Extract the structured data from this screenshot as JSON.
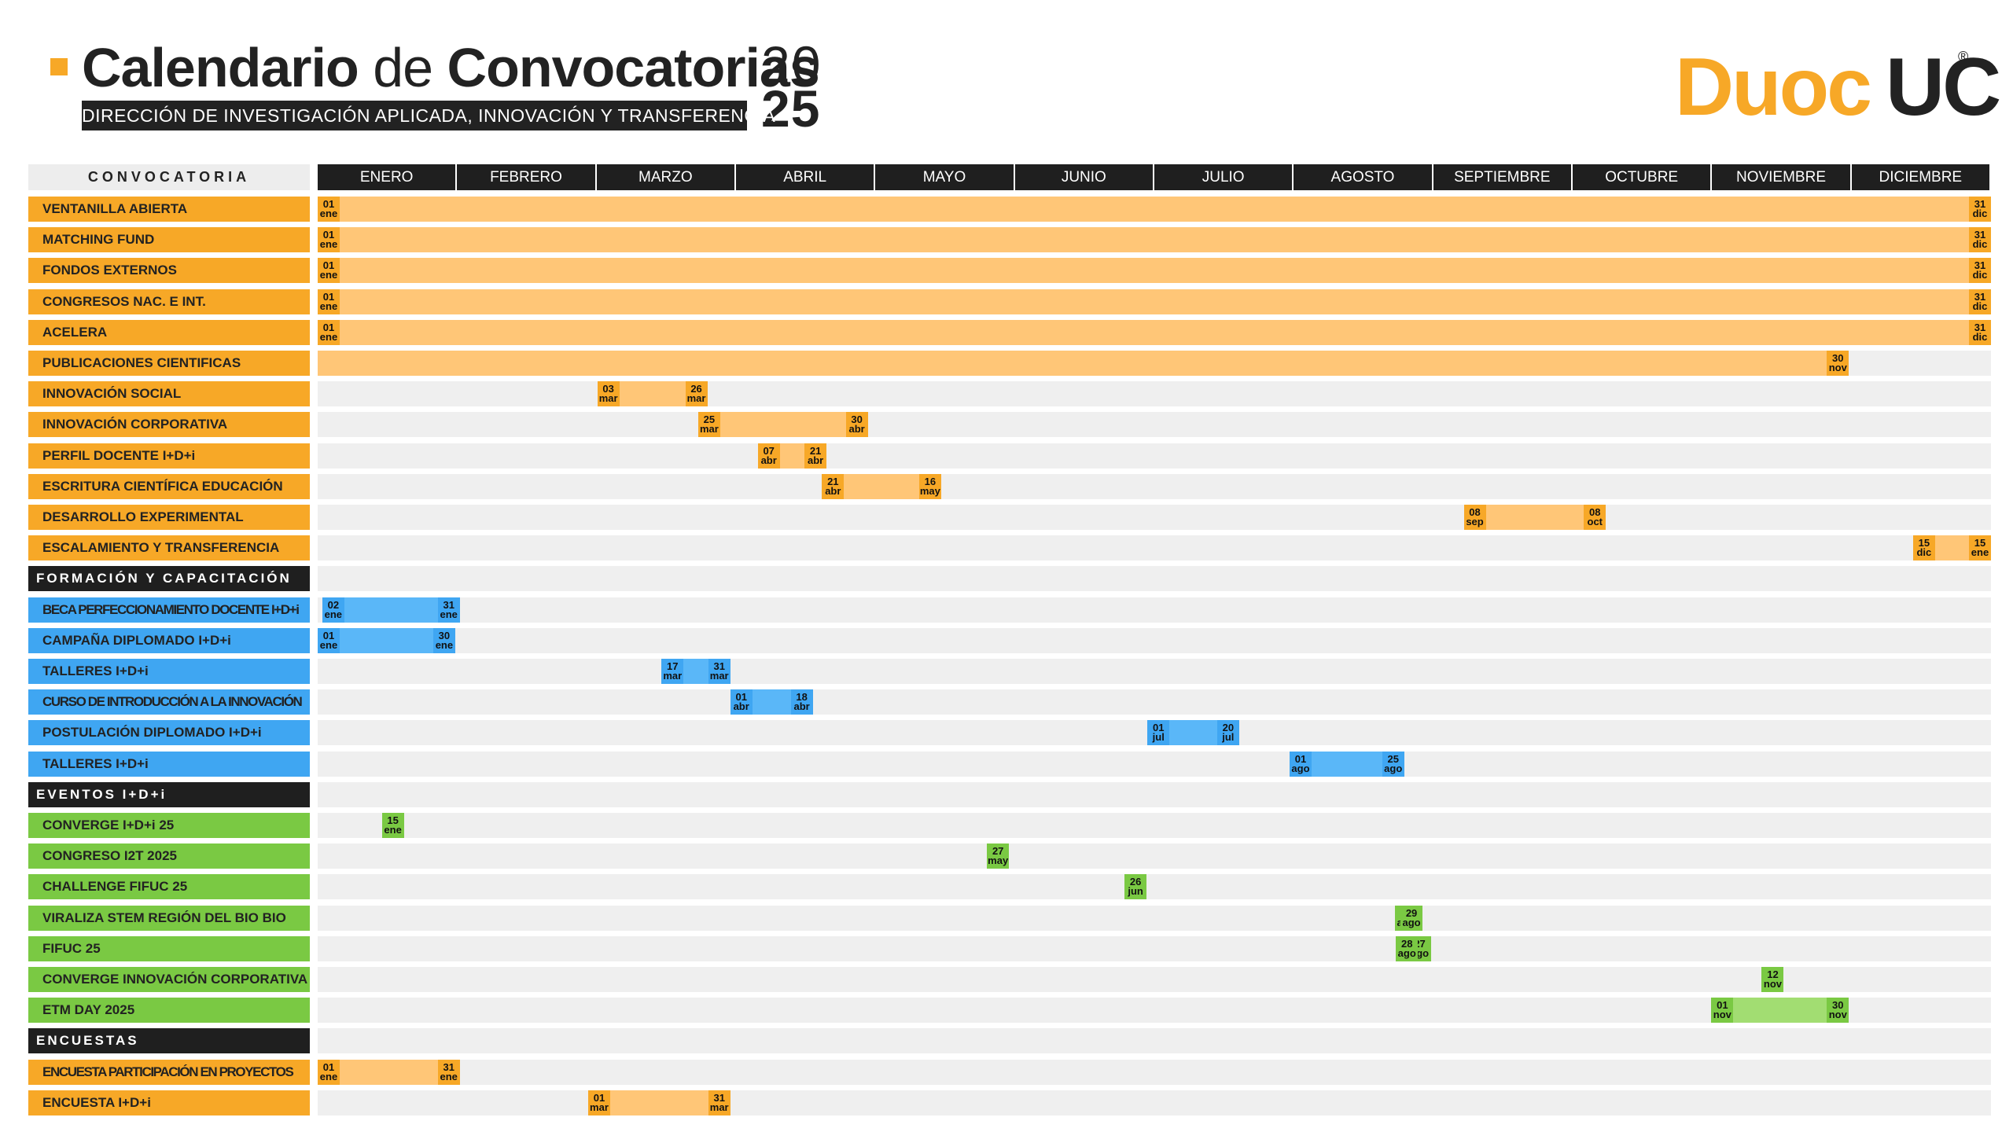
{
  "header": {
    "title_bold_1": "Calendario",
    "title_light": "de",
    "title_bold_2": "Convocatorias",
    "year_top": "20",
    "year_bottom": "25",
    "subtitle": "DIRECCIÓN DE INVESTIGACIÓN APLICADA, INNOVACIÓN Y TRANSFERENCIA",
    "logo_part1": "Duoc",
    "logo_part2": "UC",
    "logo_registered": "®"
  },
  "colors": {
    "orange": "#f7a827",
    "orange_light": "#ffc677",
    "blue": "#3fa6f2",
    "blue_light": "#5ab7f8",
    "green": "#7ac943",
    "green_light": "#a2dd72",
    "dark": "#1f1f1f",
    "track": "#efefef"
  },
  "table": {
    "first_column_header": "CONVOCATORIA",
    "months": [
      "ENERO",
      "FEBRERO",
      "MARZO",
      "ABRIL",
      "MAYO",
      "JUNIO",
      "JULIO",
      "AGOSTO",
      "SEPTIEMBRE",
      "OCTUBRE",
      "NOVIEMBRE",
      "DICIEMBRE"
    ]
  },
  "rows": [
    {
      "label": "VENTANILLA ABIERTA",
      "color": "orange",
      "start": "2025-01-01",
      "end": "2025-12-31",
      "marks": [
        {
          "day": "01",
          "mon": "ene",
          "date": "2025-01-01",
          "side": "start"
        },
        {
          "day": "31",
          "mon": "dic",
          "date": "2025-12-31",
          "side": "end"
        }
      ]
    },
    {
      "label": "MATCHING FUND",
      "color": "orange",
      "start": "2025-01-01",
      "end": "2025-12-31",
      "marks": [
        {
          "day": "01",
          "mon": "ene",
          "date": "2025-01-01",
          "side": "start"
        },
        {
          "day": "31",
          "mon": "dic",
          "date": "2025-12-31",
          "side": "end"
        }
      ]
    },
    {
      "label": "FONDOS EXTERNOS",
      "color": "orange",
      "start": "2025-01-01",
      "end": "2025-12-31",
      "marks": [
        {
          "day": "01",
          "mon": "ene",
          "date": "2025-01-01",
          "side": "start"
        },
        {
          "day": "31",
          "mon": "dic",
          "date": "2025-12-31",
          "side": "end"
        }
      ]
    },
    {
      "label": "CONGRESOS NAC. E INT.",
      "color": "orange",
      "start": "2025-01-01",
      "end": "2025-12-31",
      "marks": [
        {
          "day": "01",
          "mon": "ene",
          "date": "2025-01-01",
          "side": "start"
        },
        {
          "day": "31",
          "mon": "dic",
          "date": "2025-12-31",
          "side": "end"
        }
      ]
    },
    {
      "label": "ACELERA",
      "color": "orange",
      "start": "2025-01-01",
      "end": "2025-12-31",
      "marks": [
        {
          "day": "01",
          "mon": "ene",
          "date": "2025-01-01",
          "side": "start"
        },
        {
          "day": "31",
          "mon": "dic",
          "date": "2025-12-31",
          "side": "end"
        }
      ]
    },
    {
      "label": "PUBLICACIONES CIENTIFICAS",
      "color": "orange",
      "start": "2025-01-01",
      "end": "2025-11-30",
      "marks": [
        {
          "day": "30",
          "mon": "nov",
          "date": "2025-11-30",
          "side": "end"
        }
      ]
    },
    {
      "label": "INNOVACIÓN SOCIAL",
      "color": "orange",
      "start": "2025-03-03",
      "end": "2025-03-26",
      "marks": [
        {
          "day": "03",
          "mon": "mar",
          "date": "2025-03-03",
          "side": "start"
        },
        {
          "day": "26",
          "mon": "mar",
          "date": "2025-03-26",
          "side": "end"
        }
      ]
    },
    {
      "label": "INNOVACIÓN CORPORATIVA",
      "color": "orange",
      "start": "2025-03-25",
      "end": "2025-04-30",
      "marks": [
        {
          "day": "25",
          "mon": "mar",
          "date": "2025-03-25",
          "side": "start"
        },
        {
          "day": "30",
          "mon": "abr",
          "date": "2025-04-30",
          "side": "end"
        }
      ]
    },
    {
      "label": "PERFIL DOCENTE I+D+i",
      "color": "orange",
      "start": "2025-04-07",
      "end": "2025-04-21",
      "marks": [
        {
          "day": "07",
          "mon": "abr",
          "date": "2025-04-07",
          "side": "start"
        },
        {
          "day": "21",
          "mon": "abr",
          "date": "2025-04-21",
          "side": "end"
        }
      ]
    },
    {
      "label": "ESCRITURA CIENTÍFICA EDUCACIÓN",
      "color": "orange",
      "start": "2025-04-21",
      "end": "2025-05-16",
      "marks": [
        {
          "day": "21",
          "mon": "abr",
          "date": "2025-04-21",
          "side": "start"
        },
        {
          "day": "16",
          "mon": "may",
          "date": "2025-05-16",
          "side": "end"
        }
      ]
    },
    {
      "label": "DESARROLLO EXPERIMENTAL",
      "color": "orange",
      "start": "2025-09-08",
      "end": "2025-10-08",
      "marks": [
        {
          "day": "08",
          "mon": "sep",
          "date": "2025-09-08",
          "side": "start"
        },
        {
          "day": "08",
          "mon": "oct",
          "date": "2025-10-08",
          "side": "end"
        }
      ]
    },
    {
      "label": "ESCALAMIENTO Y TRANSFERENCIA",
      "color": "orange",
      "start": "2025-12-15",
      "end": "2025-12-31",
      "marks": [
        {
          "day": "15",
          "mon": "dic",
          "date": "2025-12-15",
          "side": "start"
        },
        {
          "day": "15",
          "mon": "ene",
          "date": "2025-12-31",
          "side": "end"
        }
      ]
    },
    {
      "label": "FORMACIÓN Y CAPACITACIÓN",
      "section": true,
      "marks": []
    },
    {
      "label": "BECA PERFECCIONAMIENTO DOCENTE I+D+i",
      "color": "blue",
      "narrow": true,
      "start": "2025-01-02",
      "end": "2025-01-31",
      "marks": [
        {
          "day": "02",
          "mon": "ene",
          "date": "2025-01-02",
          "side": "start"
        },
        {
          "day": "31",
          "mon": "ene",
          "date": "2025-01-31",
          "side": "end"
        }
      ]
    },
    {
      "label": "CAMPAÑA DIPLOMADO I+D+i",
      "color": "blue",
      "start": "2025-01-01",
      "end": "2025-01-30",
      "marks": [
        {
          "day": "01",
          "mon": "ene",
          "date": "2025-01-01",
          "side": "start"
        },
        {
          "day": "30",
          "mon": "ene",
          "date": "2025-01-30",
          "side": "end"
        }
      ]
    },
    {
      "label": "TALLERES I+D+i",
      "color": "blue",
      "start": "2025-03-17",
      "end": "2025-03-31",
      "marks": [
        {
          "day": "17",
          "mon": "mar",
          "date": "2025-03-17",
          "side": "start"
        },
        {
          "day": "31",
          "mon": "mar",
          "date": "2025-03-31",
          "side": "end"
        }
      ]
    },
    {
      "label": "CURSO DE INTRODUCCIÓN A LA INNOVACIÓN",
      "color": "blue",
      "narrow": true,
      "start": "2025-04-01",
      "end": "2025-04-18",
      "marks": [
        {
          "day": "01",
          "mon": "abr",
          "date": "2025-04-01",
          "side": "start"
        },
        {
          "day": "18",
          "mon": "abr",
          "date": "2025-04-18",
          "side": "end"
        }
      ]
    },
    {
      "label": "POSTULACIÓN DIPLOMADO I+D+i",
      "color": "blue",
      "start": "2025-07-01",
      "end": "2025-07-20",
      "marks": [
        {
          "day": "01",
          "mon": "jul",
          "date": "2025-07-01",
          "side": "start"
        },
        {
          "day": "20",
          "mon": "jul",
          "date": "2025-07-20",
          "side": "end"
        }
      ]
    },
    {
      "label": "TALLERES I+D+i",
      "color": "blue",
      "start": "2025-08-01",
      "end": "2025-08-25",
      "marks": [
        {
          "day": "01",
          "mon": "ago",
          "date": "2025-08-01",
          "side": "start"
        },
        {
          "day": "25",
          "mon": "ago",
          "date": "2025-08-25",
          "side": "end"
        }
      ]
    },
    {
      "label": "EVENTOS I+D+i",
      "section": true,
      "marks": []
    },
    {
      "label": "CONVERGE I+D+i 25",
      "color": "green",
      "start": "2025-01-15",
      "end": "2025-01-15",
      "marks": [
        {
          "day": "15",
          "mon": "ene",
          "date": "2025-01-15",
          "side": "single"
        }
      ]
    },
    {
      "label": "CONGRESO I2T 2025",
      "color": "green",
      "start": "2025-05-27",
      "end": "2025-05-27",
      "marks": [
        {
          "day": "27",
          "mon": "may",
          "date": "2025-05-27",
          "side": "single"
        }
      ]
    },
    {
      "label": "CHALLENGE FIFUC 25",
      "color": "green",
      "start": "2025-06-26",
      "end": "2025-06-26",
      "marks": [
        {
          "day": "26",
          "mon": "jun",
          "date": "2025-06-26",
          "side": "single"
        }
      ]
    },
    {
      "label": "VIRALIZA STEM REGIÓN DEL BIO BIO",
      "color": "green",
      "start": "2025-08-24",
      "end": "2025-08-29",
      "marks": [
        {
          "day": "24",
          "mon": "ago",
          "date": "2025-08-24",
          "side": "start"
        },
        {
          "day": "29",
          "mon": "ago",
          "date": "2025-08-29",
          "side": "end"
        }
      ]
    },
    {
      "label": "FIFUC 25",
      "color": "green",
      "start": "2025-08-27",
      "end": "2025-08-28",
      "marks": [
        {
          "day": "27",
          "mon": "ago",
          "date": "2025-08-27",
          "side": "start"
        },
        {
          "day": "28",
          "mon": "ago",
          "date": "2025-08-28",
          "side": "end"
        }
      ]
    },
    {
      "label": "CONVERGE INNOVACIÓN CORPORATIVA",
      "color": "green",
      "start": "2025-11-12",
      "end": "2025-11-12",
      "marks": [
        {
          "day": "12",
          "mon": "nov",
          "date": "2025-11-12",
          "side": "single"
        }
      ]
    },
    {
      "label": "ETM DAY 2025",
      "color": "green",
      "start": "2025-11-01",
      "end": "2025-11-30",
      "marks": [
        {
          "day": "01",
          "mon": "nov",
          "date": "2025-11-01",
          "side": "start"
        },
        {
          "day": "30",
          "mon": "nov",
          "date": "2025-11-30",
          "side": "end"
        }
      ]
    },
    {
      "label": "ENCUESTAS",
      "section": true,
      "marks": []
    },
    {
      "label": "ENCUESTA PARTICIPACIÓN EN PROYECTOS",
      "color": "orange",
      "narrow": true,
      "start": "2025-01-01",
      "end": "2025-01-31",
      "marks": [
        {
          "day": "01",
          "mon": "ene",
          "date": "2025-01-01",
          "side": "start"
        },
        {
          "day": "31",
          "mon": "ene",
          "date": "2025-01-31",
          "side": "end"
        }
      ]
    },
    {
      "label": "ENCUESTA I+D+i",
      "color": "orange",
      "start": "2025-03-01",
      "end": "2025-03-31",
      "marks": [
        {
          "day": "01",
          "mon": "mar",
          "date": "2025-03-01",
          "side": "start"
        },
        {
          "day": "31",
          "mon": "mar",
          "date": "2025-03-31",
          "side": "end"
        }
      ]
    }
  ]
}
